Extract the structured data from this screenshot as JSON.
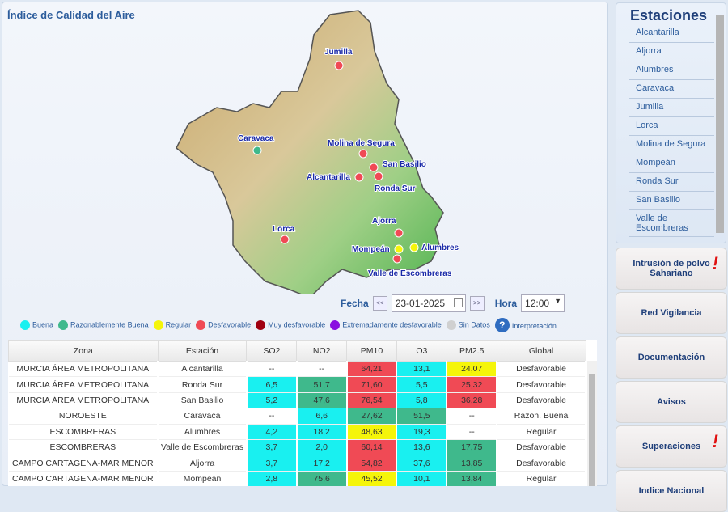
{
  "title": "Índice de Calidad del Aire",
  "map": {
    "stations": [
      {
        "name": "Jumilla",
        "status": "Desfavorable"
      },
      {
        "name": "Caravaca",
        "status": "Razonablemente Buena"
      },
      {
        "name": "Molina de Segura",
        "status": "Desfavorable"
      },
      {
        "name": "San Basilio",
        "status": "Desfavorable"
      },
      {
        "name": "Alcantarilla",
        "status": "Desfavorable"
      },
      {
        "name": "Ronda Sur",
        "status": "Desfavorable"
      },
      {
        "name": "Lorca",
        "status": "Desfavorable"
      },
      {
        "name": "Ajorra",
        "status": "Desfavorable"
      },
      {
        "name": "Mompeán",
        "status": "Regular"
      },
      {
        "name": "Alumbres",
        "status": "Regular"
      },
      {
        "name": "Valle de Escombreras",
        "status": "Desfavorable"
      }
    ]
  },
  "controls": {
    "fecha_label": "Fecha",
    "prev": "<<",
    "date": "23-01-2025",
    "next": ">>",
    "hora_label": "Hora",
    "hora": "12:00"
  },
  "legend": [
    {
      "label": "Buena",
      "color": "#19f0f0"
    },
    {
      "label": "Razonablemente Buena",
      "color": "#3fb98c"
    },
    {
      "label": "Regular",
      "color": "#f5f50a"
    },
    {
      "label": "Desfavorable",
      "color": "#f04a55"
    },
    {
      "label": "Muy desfavorable",
      "color": "#a00010"
    },
    {
      "label": "Extremadamente desfavorable",
      "color": "#8a10e0"
    },
    {
      "label": "Sin Datos",
      "color": "#d0d0d0"
    },
    {
      "label": "Interpretación",
      "color": "#2f6cc0"
    }
  ],
  "table": {
    "headers": [
      "Zona",
      "Estación",
      "SO2",
      "NO2",
      "PM10",
      "O3",
      "PM2.5",
      "Global"
    ],
    "rows": [
      [
        "MURCIA ÁREA METROPOLITANA",
        "Alcantarilla",
        "--",
        "--",
        "64,21",
        "13,1",
        "24,07",
        "Desfavorable"
      ],
      [
        "MURCIA ÁREA METROPOLITANA",
        "Ronda Sur",
        "6,5",
        "51,7",
        "71,60",
        "5,5",
        "25,32",
        "Desfavorable"
      ],
      [
        "MURCIA ÁREA METROPOLITANA",
        "San Basilio",
        "5,2",
        "47,6",
        "76,54",
        "5,8",
        "36,28",
        "Desfavorable"
      ],
      [
        "NOROESTE",
        "Caravaca",
        "--",
        "6,6",
        "27,62",
        "51,5",
        "--",
        "Razon. Buena"
      ],
      [
        "ESCOMBRERAS",
        "Alumbres",
        "4,2",
        "18,2",
        "48,63",
        "19,3",
        "--",
        "Regular"
      ],
      [
        "ESCOMBRERAS",
        "Valle de Escombreras",
        "3,7",
        "2,0",
        "60,14",
        "13,6",
        "17,75",
        "Desfavorable"
      ],
      [
        "CAMPO CARTAGENA-MAR MENOR",
        "Aljorra",
        "3,7",
        "17,2",
        "54,82",
        "37,6",
        "13,85",
        "Desfavorable"
      ],
      [
        "CAMPO CARTAGENA-MAR MENOR",
        "Mompean",
        "2,8",
        "75,6",
        "45,52",
        "10,1",
        "13,84",
        "Regular"
      ]
    ],
    "colors": [
      [
        null,
        null,
        null,
        null,
        "D",
        "B",
        "R",
        null
      ],
      [
        null,
        null,
        "B",
        "RB",
        "D",
        "B",
        "D",
        null
      ],
      [
        null,
        null,
        "B",
        "RB",
        "D",
        "B",
        "D",
        null
      ],
      [
        null,
        null,
        null,
        "B",
        "RB",
        "RB",
        null,
        null
      ],
      [
        null,
        null,
        "B",
        "B",
        "R",
        "B",
        null,
        null
      ],
      [
        null,
        null,
        "B",
        "B",
        "D",
        "B",
        "RB",
        null
      ],
      [
        null,
        null,
        "B",
        "B",
        "D",
        "B",
        "RB",
        null
      ],
      [
        null,
        null,
        "B",
        "RB",
        "R",
        "B",
        "RB",
        null
      ]
    ]
  },
  "sidebar": {
    "title": "Estaciones",
    "items": [
      "Alcantarilla",
      "Aljorra",
      "Alumbres",
      "Caravaca",
      "Jumilla",
      "Lorca",
      "Molina de Segura",
      "Mompeán",
      "Ronda Sur",
      "San Basilio",
      "Valle de Escombreras"
    ]
  },
  "buttons": [
    {
      "label": "Intrusión de polvo Sahariano",
      "alert": "!"
    },
    {
      "label": "Red Vigilancia"
    },
    {
      "label": "Documentación"
    },
    {
      "label": "Avisos"
    },
    {
      "label": "Superaciones",
      "alert": "!"
    },
    {
      "label": "Indice Nacional"
    }
  ]
}
